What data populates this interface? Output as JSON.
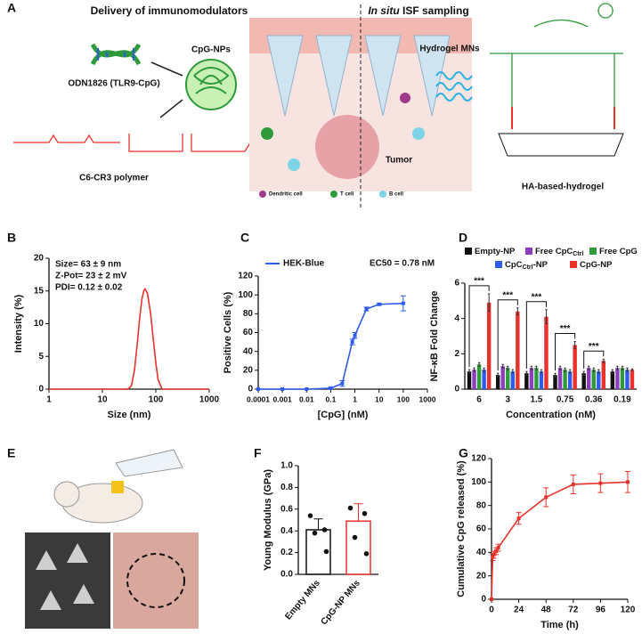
{
  "panel_labels": [
    "A",
    "B",
    "C",
    "D",
    "E",
    "F",
    "G"
  ],
  "illustration": {
    "left_title": "Delivery of immunomodulators",
    "right_title_italic": "In situ",
    "right_title_rest": "ISF sampling",
    "dna_label": "ODN1826 (TLR9-CpG)",
    "np_label": "CpG-NPs",
    "polymer_label": "C6-CR3 polymer",
    "mn_label": "Hydrogel MNs",
    "tumor_label": "Tumor",
    "cell_labels": [
      "Dendritic cell",
      "T cell",
      "B cell"
    ],
    "hydrogel_label": "HA-based-hydrogel"
  },
  "chart_data": [
    {
      "type": "line",
      "xscale": "log",
      "xlim": [
        1,
        1000
      ],
      "xticks": [
        1,
        10,
        100,
        1000
      ],
      "ylim": [
        0,
        20
      ],
      "yticks": [
        0,
        5,
        10,
        15,
        20
      ],
      "xlabel": "Size (nm)",
      "ylabel": "Intensity (%)",
      "annotations": [
        "Size= 63 ± 9 nm",
        "Z-Pot=  23 ± 2 mV",
        "PDI= 0.12 ± 0.02"
      ],
      "x": [
        1,
        10,
        20,
        30,
        35,
        40,
        45,
        50,
        55,
        60,
        63,
        70,
        80,
        90,
        100,
        110,
        130,
        1000
      ],
      "series": [
        {
          "color": "#e8322b",
          "values": [
            0,
            0,
            0,
            0,
            0.5,
            3,
            7,
            11,
            13.8,
            15.1,
            15.3,
            14.6,
            11.5,
            7.5,
            4,
            1.5,
            0,
            0
          ]
        }
      ]
    },
    {
      "type": "line",
      "xscale": "log",
      "markers": true,
      "xlim": [
        0.0001,
        1000
      ],
      "xticks": [
        0.0001,
        0.001,
        0.01,
        0.1,
        1,
        10,
        100,
        1000
      ],
      "ylim": [
        0,
        120
      ],
      "yticks": [
        0,
        20,
        40,
        60,
        80,
        100,
        120
      ],
      "xlabel": "[CpG] (nM)",
      "ylabel": "Positive Cells (%)",
      "annotations": [
        "EC50 = 0.78 nM"
      ],
      "x": [
        0.0001,
        0.001,
        0.01,
        0.1,
        0.3,
        0.78,
        1,
        3,
        10,
        100
      ],
      "series": [
        {
          "name": "HEK-Blue",
          "color": "#2f5bea",
          "values": [
            0,
            0,
            0,
            1,
            6,
            50,
            57,
            85,
            90,
            91
          ],
          "errors": [
            0,
            0,
            0,
            1,
            3,
            3,
            3,
            2,
            1,
            8
          ]
        }
      ]
    },
    {
      "type": "bar",
      "ylim": [
        0,
        6
      ],
      "yticks": [
        0,
        2,
        4,
        6
      ],
      "xlabel": "Concentration (nM)",
      "ylabel": "NF-κB Fold Change",
      "categories": [
        "6",
        "3",
        "1.5",
        "0.75",
        "0.36",
        "0.19"
      ],
      "significance": [
        "***",
        "***",
        "***",
        "***",
        "***"
      ],
      "series": [
        {
          "name": "Empty-NP",
          "color": "#111111",
          "values": [
            1.0,
            0.8,
            0.9,
            0.8,
            0.9,
            1.0
          ],
          "errors": [
            0.1,
            0.1,
            0.1,
            0.1,
            0.1,
            0.1
          ]
        },
        {
          "name": "Free CpC",
          "name_sub": "Ctrl",
          "color": "#8b3fbf",
          "values": [
            1.1,
            1.3,
            1.2,
            1.2,
            1.2,
            1.2
          ],
          "errors": [
            0.1,
            0.1,
            0.1,
            0.1,
            0.1,
            0.1
          ]
        },
        {
          "name": "Free CpG",
          "color": "#2e9a3a",
          "values": [
            1.4,
            1.2,
            1.2,
            1.1,
            1.1,
            1.2
          ],
          "errors": [
            0.1,
            0.1,
            0.1,
            0.1,
            0.1,
            0.1
          ]
        },
        {
          "name": "CpC",
          "name_sub": "Ctrl",
          "name_after": "-NP",
          "color": "#2f5bea",
          "values": [
            1.1,
            1.0,
            1.0,
            1.0,
            1.0,
            1.1
          ],
          "errors": [
            0.1,
            0.1,
            0.1,
            0.1,
            0.1,
            0.1
          ]
        },
        {
          "name": "CpG-NP",
          "color": "#e8322b",
          "values": [
            4.9,
            4.4,
            4.1,
            2.5,
            1.6,
            1.1
          ],
          "errors": [
            0.5,
            0.2,
            0.4,
            0.2,
            0.1,
            0.05
          ]
        }
      ]
    },
    {
      "type": "bar",
      "ylim": [
        0,
        1
      ],
      "yticks": [
        {
          "value": 0,
          "label": "0.0"
        },
        {
          "value": 0.2,
          "label": "0.2"
        },
        {
          "value": 0.4,
          "label": "0.4"
        },
        {
          "value": 0.6,
          "label": "0.6"
        },
        {
          "value": 0.8,
          "label": "0.8"
        },
        {
          "value": 1,
          "label": "1.0"
        }
      ],
      "ylabel": "Young Modulus (GPa)",
      "categories": [
        "Empty MNs",
        "CpG-NP MNs"
      ],
      "values": [
        0.41,
        0.49
      ],
      "errors": [
        0.1,
        0.16
      ],
      "colors": [
        "#111111",
        "#e8322b"
      ],
      "points": [
        [
          0.54,
          0.41,
          0.38,
          0.21
        ],
        [
          0.61,
          0.56,
          0.34,
          0.19
        ]
      ]
    },
    {
      "type": "line",
      "markers": true,
      "xlim": [
        0,
        120
      ],
      "xticks": [
        0,
        24,
        48,
        72,
        96,
        120
      ],
      "ylim": [
        0,
        120
      ],
      "yticks": [
        0,
        20,
        40,
        60,
        80,
        100,
        120
      ],
      "xlabel": "Time (h)",
      "ylabel": "Cumulative CpG released (%)",
      "x": [
        0,
        1,
        2,
        4,
        6,
        24,
        48,
        72,
        96,
        120
      ],
      "series": [
        {
          "color": "#e8322b",
          "values": [
            0,
            36,
            38,
            41,
            44,
            69,
            87,
            98,
            99,
            100
          ],
          "errors": [
            0,
            3,
            3,
            3,
            3,
            5,
            8,
            8,
            8,
            9
          ]
        }
      ]
    }
  ]
}
